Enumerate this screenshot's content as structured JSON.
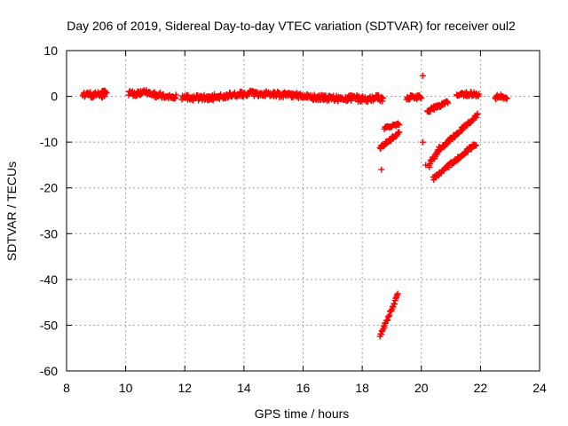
{
  "chart_data": {
    "type": "scatter",
    "title": "Day 206 of 2019, Sidereal Day-to-day VTEC variation (SDTVAR) for receiver oul2",
    "xlabel": "GPS time / hours",
    "ylabel": "SDTVAR / TECUs",
    "xlim": [
      8,
      24
    ],
    "ylim": [
      -60,
      10
    ],
    "xticks": [
      8,
      10,
      12,
      14,
      16,
      18,
      20,
      22,
      24
    ],
    "yticks": [
      10,
      0,
      -10,
      -20,
      -30,
      -40,
      -50,
      -60
    ],
    "grid": true,
    "legend": "none",
    "marker": "plus",
    "color": "#ff0000",
    "segments": [
      {
        "x0": 8.55,
        "x1": 9.3,
        "y0": 0.3,
        "y1": 0.3,
        "jitter": 0.6
      },
      {
        "x0": 9.2,
        "x1": 9.35,
        "y0": 1.0,
        "y1": 1.0,
        "jitter": 0.3
      },
      {
        "x0": 10.1,
        "x1": 10.7,
        "y0": 0.5,
        "y1": 0.8,
        "jitter": 0.6
      },
      {
        "x0": 10.7,
        "x1": 11.7,
        "y0": 0.5,
        "y1": 0.0,
        "jitter": 0.6
      },
      {
        "x0": 11.9,
        "x1": 13.0,
        "y0": -0.3,
        "y1": -0.3,
        "jitter": 0.6
      },
      {
        "x0": 13.0,
        "x1": 14.3,
        "y0": -0.1,
        "y1": 0.7,
        "jitter": 0.6
      },
      {
        "x0": 14.3,
        "x1": 15.8,
        "y0": 0.6,
        "y1": 0.3,
        "jitter": 0.6
      },
      {
        "x0": 15.8,
        "x1": 17.5,
        "y0": 0.0,
        "y1": -0.6,
        "jitter": 0.6
      },
      {
        "x0": 17.5,
        "x1": 18.7,
        "y0": -0.5,
        "y1": -0.4,
        "jitter": 0.7
      },
      {
        "x0": 18.6,
        "x1": 19.25,
        "y0": -11.2,
        "y1": -8.0,
        "jitter": 0.4
      },
      {
        "x0": 18.75,
        "x1": 19.25,
        "y0": -7.0,
        "y1": -6.0,
        "jitter": 0.3
      },
      {
        "x0": 18.6,
        "x1": 19.2,
        "y0": -52.3,
        "y1": -43.5,
        "jitter": 0.4
      },
      {
        "x0": 19.5,
        "x1": 20.0,
        "y0": -0.3,
        "y1": -0.2,
        "jitter": 0.5
      },
      {
        "x0": 20.2,
        "x1": 20.9,
        "y0": -3.2,
        "y1": -1.2,
        "jitter": 0.4
      },
      {
        "x0": 20.25,
        "x1": 20.6,
        "y0": -15.2,
        "y1": -11.5,
        "jitter": 0.5
      },
      {
        "x0": 20.55,
        "x1": 21.9,
        "y0": -12.0,
        "y1": -4.0,
        "jitter": 0.4
      },
      {
        "x0": 20.4,
        "x1": 21.85,
        "y0": -18.0,
        "y1": -10.3,
        "jitter": 0.4
      },
      {
        "x0": 21.35,
        "x1": 21.95,
        "y0": 0.5,
        "y1": 0.5,
        "jitter": 0.5
      },
      {
        "x0": 21.2,
        "x1": 21.4,
        "y0": 0.0,
        "y1": 0.8,
        "jitter": 0.4
      },
      {
        "x0": 22.5,
        "x1": 22.9,
        "y0": -0.1,
        "y1": -0.1,
        "jitter": 0.5
      }
    ],
    "outliers": [
      {
        "x": 18.65,
        "y": -16.0
      },
      {
        "x": 20.05,
        "y": 4.5
      },
      {
        "x": 20.05,
        "y": -10.0
      },
      {
        "x": 20.15,
        "y": -15.0
      }
    ]
  }
}
